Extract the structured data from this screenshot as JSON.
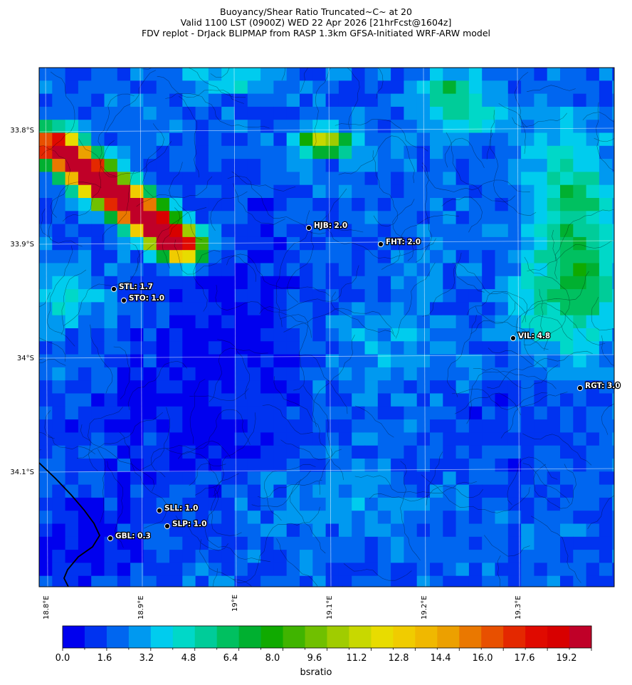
{
  "header": {
    "line1": "Buoyancy/Shear Ratio Truncated~C~    at 20",
    "line2": "Valid 1100 LST (0900Z) WED 22 Apr 2026 [21hrFcst@1604z]",
    "line3": "FDV replot - DrJack BLIPMAP from RASP 1.3km GFSA-Initiated WRF-ARW model"
  },
  "axes": {
    "lat_labels": [
      "33.8°S",
      "33.9°S",
      "34°S",
      "34.1°S"
    ],
    "lon_labels": [
      "18.8°E",
      "18.9°E",
      "19°E",
      "19.1°E",
      "19.2°E",
      "19.3°E"
    ]
  },
  "colorbar": {
    "title": "bsratio",
    "tick_labels": [
      "0.0",
      "1.6",
      "3.2",
      "4.8",
      "6.4",
      "8.0",
      "9.6",
      "11.2",
      "12.8",
      "14.4",
      "16.0",
      "17.6",
      "19.2"
    ],
    "colors": [
      "#0000ee",
      "#0033f0",
      "#0066f0",
      "#0099f0",
      "#00ccee",
      "#00d8c8",
      "#00cc99",
      "#00c060",
      "#00b030",
      "#10aa00",
      "#40b400",
      "#70c000",
      "#a0cc00",
      "#c8d800",
      "#e8dc00",
      "#f0cc00",
      "#f0b800",
      "#eca000",
      "#ea7800",
      "#e85000",
      "#e42800",
      "#e00a00",
      "#d80000",
      "#c00028"
    ]
  },
  "chart_data": {
    "type": "heatmap",
    "variable": "bsratio",
    "title": "Buoyancy/Shear Ratio Truncated~C~    at 20",
    "color_scale": [
      0.0,
      19.2
    ],
    "lon_range": [
      18.79,
      19.395
    ],
    "lat_range": [
      -34.2,
      -33.74
    ],
    "stations": [
      {
        "code": "HJB",
        "label": "HJB: 2.0",
        "value": 2.0
      },
      {
        "code": "FHT",
        "label": "FHT: 2.0",
        "value": 2.0
      },
      {
        "code": "STL",
        "label": "STL: 1.7",
        "value": 1.7
      },
      {
        "code": "STO",
        "label": "STO: 1.0",
        "value": 1.0
      },
      {
        "code": "VIL",
        "label": "VIL: 4.8",
        "value": 4.8
      },
      {
        "code": "RGT",
        "label": "RGT: 3.0",
        "value": 3.0
      },
      {
        "code": "SLL",
        "label": "SLL: 1.0",
        "value": 1.0
      },
      {
        "code": "SLP",
        "label": "SLP: 1.0",
        "value": 1.0
      },
      {
        "code": "GBL",
        "label": "GBL: 0.3",
        "value": 0.3
      }
    ]
  }
}
